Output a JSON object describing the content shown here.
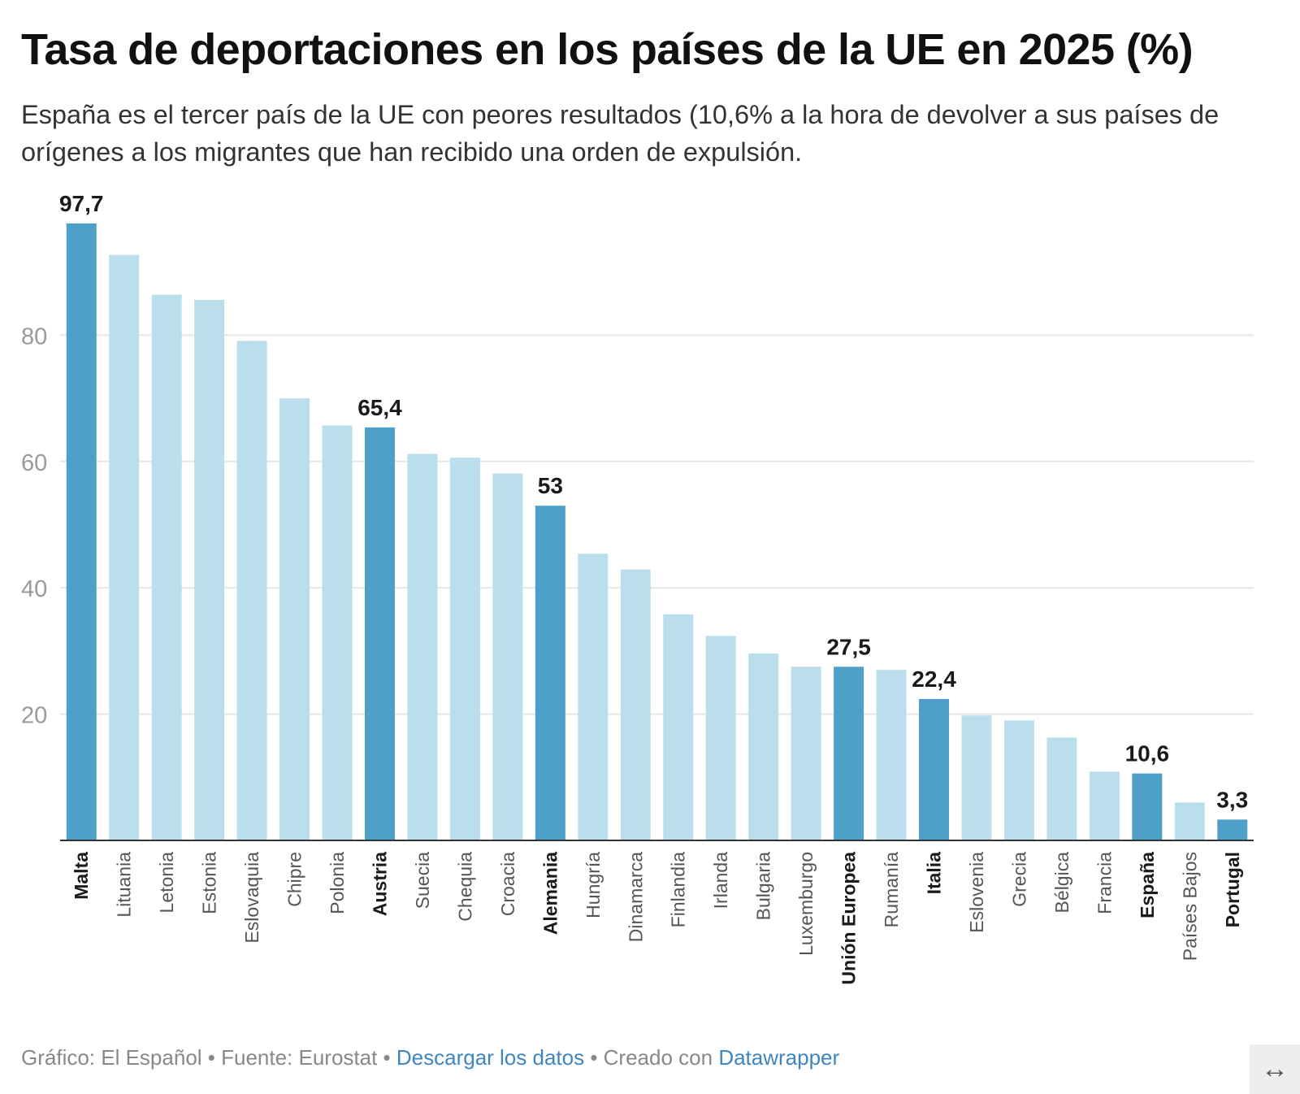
{
  "header": {
    "title": "Tasa de deportaciones en los países de la UE en 2025 (%)",
    "subtitle": "España es el tercer país de la UE con peores resultados (10,6% a la hora de devolver a sus países de orígenes a los migrantes que han recibido una orden de expulsión."
  },
  "chart_data": {
    "type": "bar",
    "ylim": [
      0,
      100
    ],
    "yticks": [
      20,
      40,
      60,
      80
    ],
    "ytick_labels": [
      "20",
      "40",
      "60",
      "80"
    ],
    "grid": true,
    "colors": {
      "highlight": "#4fa0c9",
      "regular": "#bbdeed",
      "grid": "#e6e6e6",
      "axis": "#333333",
      "tick_label": "#9a9a9a"
    },
    "categories": [
      "Malta",
      "Lituania",
      "Letonia",
      "Estonia",
      "Eslovaquia",
      "Chipre",
      "Polonia",
      "Austria",
      "Suecia",
      "Chequia",
      "Croacia",
      "Alemania",
      "Hungría",
      "Dinamarca",
      "Finlandia",
      "Irlanda",
      "Bulgaria",
      "Luxemburgo",
      "Unión Europea",
      "Rumanía",
      "Italia",
      "Eslovenia",
      "Grecia",
      "Bélgica",
      "Francia",
      "España",
      "Países Bajos",
      "Portugal"
    ],
    "values": [
      97.7,
      92.7,
      86.4,
      85.6,
      79.1,
      70.0,
      65.7,
      65.4,
      61.2,
      60.6,
      58.1,
      53.0,
      45.4,
      42.9,
      35.8,
      32.4,
      29.6,
      27.5,
      27.5,
      27.0,
      22.4,
      19.8,
      19.0,
      16.3,
      10.9,
      10.6,
      6.0,
      3.3
    ],
    "highlighted": [
      "Malta",
      "Austria",
      "Alemania",
      "Unión Europea",
      "Italia",
      "España",
      "Portugal"
    ],
    "value_labels": {
      "Malta": "97,7",
      "Austria": "65,4",
      "Alemania": "53",
      "Unión Europea": "27,5",
      "Italia": "22,4",
      "España": "10,6",
      "Portugal": "3,3"
    }
  },
  "footer": {
    "credit": "Gráfico: El Español • Fuente: Eurostat • ",
    "download_link": "Descargar los datos",
    "created_with": " • Creado con ",
    "tool_link": "Datawrapper"
  },
  "controls": {
    "resize_icon": "↔"
  }
}
